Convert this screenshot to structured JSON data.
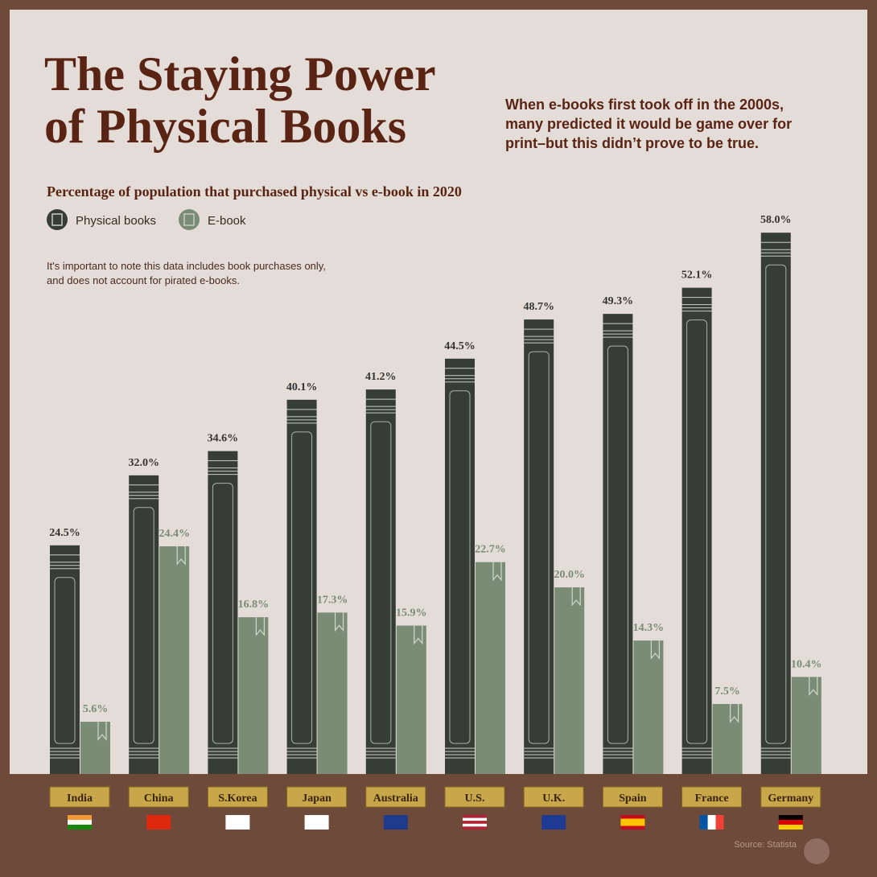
{
  "chart_data": {
    "type": "bar",
    "title": "The Staying Power",
    "title_line2": "of Physical Books",
    "description": "When e-books first took off in the 2000s, many predicted it would be game over for print–but this didn’t prove to be true.",
    "subtitle": "Percentage of population that purchased physical vs e-book in 2020",
    "note": "It's important to note this data includes book purchases only, and does not account for pirated e-books.",
    "source": "Source: Statista",
    "categories": [
      "India",
      "China",
      "S.Korea",
      "Japan",
      "Australia",
      "U.S.",
      "U.K.",
      "Spain",
      "France",
      "Germany"
    ],
    "series": [
      {
        "name": "Physical books",
        "color": "#363d33",
        "values": [
          24.5,
          32.0,
          34.6,
          40.1,
          41.2,
          44.5,
          48.7,
          49.3,
          52.1,
          58.0
        ],
        "value_labels": [
          "24.5%",
          "32.0%",
          "34.6%",
          "40.1%",
          "41.2%",
          "44.5%",
          "48.7%",
          "49.3%",
          "52.1%",
          "58.0%"
        ]
      },
      {
        "name": "E-book",
        "color": "#7a8c76",
        "values": [
          5.6,
          24.4,
          16.8,
          17.3,
          15.9,
          22.7,
          20.0,
          14.3,
          7.5,
          10.4
        ],
        "value_labels": [
          "5.6%",
          "24.4%",
          "16.8%",
          "17.3%",
          "15.9%",
          "22.7%",
          "20.0%",
          "14.3%",
          "7.5%",
          "10.4%"
        ]
      }
    ]
  }
}
